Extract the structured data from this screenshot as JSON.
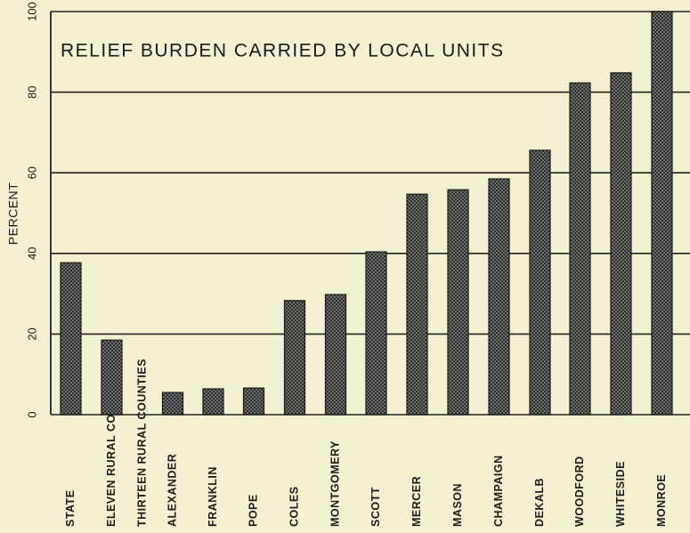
{
  "chart_data": {
    "type": "bar",
    "title": "RELIEF BURDEN CARRIED BY LOCAL UNITS",
    "y_label": "PERCENT",
    "categories": [
      "STATE",
      "ELEVEN RURAL COUNTIES",
      "THIRTEEN RURAL COUNTIES",
      "ALEXANDER",
      "FRANKLIN",
      "POPE",
      "COLES",
      "MONTGOMERY",
      "SCOTT",
      "MERCER",
      "MASON",
      "CHAMPAIGN",
      "DEKALB",
      "WOODFORD",
      "WHITESIDE",
      "MONROE"
    ],
    "values": [
      37.7,
      18.5,
      null,
      5.5,
      6.4,
      6.6,
      28.3,
      29.8,
      40.4,
      54.7,
      55.8,
      58.5,
      65.6,
      82.3,
      84.8,
      100
    ],
    "color": "#4a4a4a",
    "ylim": [
      0,
      100
    ],
    "yticks": [
      0,
      20,
      40,
      60,
      80,
      100
    ],
    "grid": true
  }
}
